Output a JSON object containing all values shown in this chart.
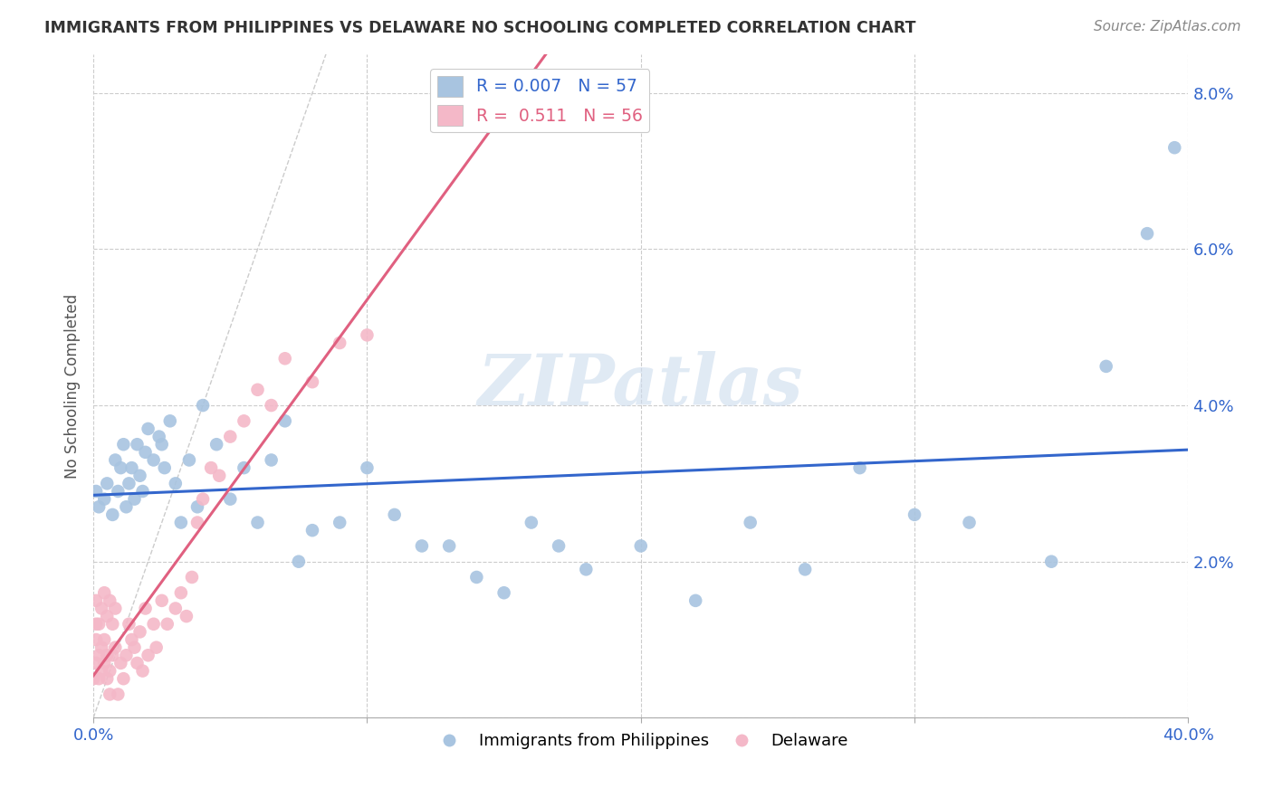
{
  "title": "IMMIGRANTS FROM PHILIPPINES VS DELAWARE NO SCHOOLING COMPLETED CORRELATION CHART",
  "source": "Source: ZipAtlas.com",
  "ylabel": "No Schooling Completed",
  "xlim": [
    0.0,
    0.4
  ],
  "ylim": [
    0.0,
    0.085
  ],
  "xticks": [
    0.0,
    0.1,
    0.2,
    0.3,
    0.4
  ],
  "xticklabels": [
    "0.0%",
    "",
    "",
    "",
    "40.0%"
  ],
  "yticks": [
    0.0,
    0.02,
    0.04,
    0.06,
    0.08
  ],
  "yticklabels": [
    "",
    "2.0%",
    "4.0%",
    "6.0%",
    "8.0%"
  ],
  "blue_R": "0.007",
  "blue_N": "57",
  "pink_R": "0.511",
  "pink_N": "56",
  "blue_color": "#a8c4e0",
  "pink_color": "#f4b8c8",
  "blue_line_color": "#3366cc",
  "pink_line_color": "#e06080",
  "diag_line_color": "#cccccc",
  "watermark": "ZIPatlas",
  "blue_scatter_x": [
    0.001,
    0.002,
    0.004,
    0.005,
    0.007,
    0.008,
    0.009,
    0.01,
    0.011,
    0.012,
    0.013,
    0.014,
    0.015,
    0.016,
    0.017,
    0.018,
    0.019,
    0.02,
    0.022,
    0.024,
    0.025,
    0.026,
    0.028,
    0.03,
    0.032,
    0.035,
    0.038,
    0.04,
    0.045,
    0.05,
    0.055,
    0.06,
    0.065,
    0.07,
    0.075,
    0.08,
    0.09,
    0.1,
    0.11,
    0.12,
    0.13,
    0.14,
    0.15,
    0.16,
    0.17,
    0.18,
    0.2,
    0.22,
    0.24,
    0.26,
    0.28,
    0.3,
    0.32,
    0.35,
    0.37,
    0.385,
    0.395
  ],
  "blue_scatter_y": [
    0.029,
    0.027,
    0.028,
    0.03,
    0.026,
    0.033,
    0.029,
    0.032,
    0.035,
    0.027,
    0.03,
    0.032,
    0.028,
    0.035,
    0.031,
    0.029,
    0.034,
    0.037,
    0.033,
    0.036,
    0.035,
    0.032,
    0.038,
    0.03,
    0.025,
    0.033,
    0.027,
    0.04,
    0.035,
    0.028,
    0.032,
    0.025,
    0.033,
    0.038,
    0.02,
    0.024,
    0.025,
    0.032,
    0.026,
    0.022,
    0.022,
    0.018,
    0.016,
    0.025,
    0.022,
    0.019,
    0.022,
    0.015,
    0.025,
    0.019,
    0.032,
    0.026,
    0.025,
    0.02,
    0.045,
    0.062,
    0.073
  ],
  "pink_scatter_x": [
    0.0,
    0.001,
    0.001,
    0.001,
    0.001,
    0.002,
    0.002,
    0.002,
    0.003,
    0.003,
    0.003,
    0.004,
    0.004,
    0.004,
    0.005,
    0.005,
    0.005,
    0.006,
    0.006,
    0.006,
    0.007,
    0.007,
    0.008,
    0.008,
    0.009,
    0.01,
    0.011,
    0.012,
    0.013,
    0.014,
    0.015,
    0.016,
    0.017,
    0.018,
    0.019,
    0.02,
    0.022,
    0.023,
    0.025,
    0.027,
    0.03,
    0.032,
    0.034,
    0.036,
    0.038,
    0.04,
    0.043,
    0.046,
    0.05,
    0.055,
    0.06,
    0.065,
    0.07,
    0.08,
    0.09,
    0.1
  ],
  "pink_scatter_y": [
    0.005,
    0.007,
    0.01,
    0.012,
    0.015,
    0.005,
    0.008,
    0.012,
    0.006,
    0.009,
    0.014,
    0.007,
    0.01,
    0.016,
    0.005,
    0.008,
    0.013,
    0.003,
    0.006,
    0.015,
    0.008,
    0.012,
    0.009,
    0.014,
    0.003,
    0.007,
    0.005,
    0.008,
    0.012,
    0.01,
    0.009,
    0.007,
    0.011,
    0.006,
    0.014,
    0.008,
    0.012,
    0.009,
    0.015,
    0.012,
    0.014,
    0.016,
    0.013,
    0.018,
    0.025,
    0.028,
    0.032,
    0.031,
    0.036,
    0.038,
    0.042,
    0.04,
    0.046,
    0.043,
    0.048,
    0.049
  ]
}
